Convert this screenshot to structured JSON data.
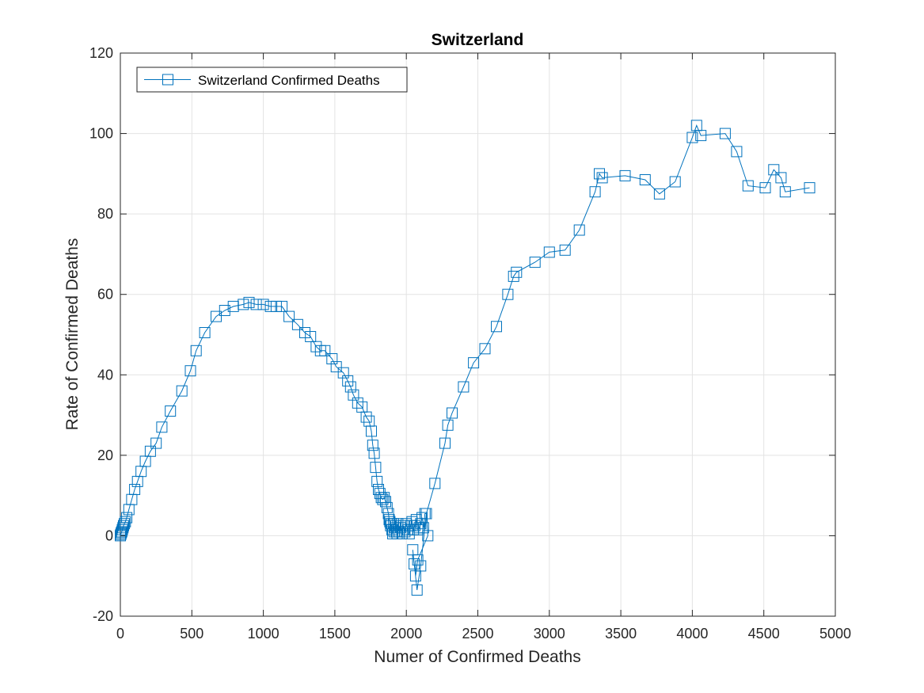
{
  "chart_data": {
    "type": "line",
    "title": "Switzerland",
    "xlabel": "Numer of Confirmed Deaths",
    "ylabel": "Rate of Confirmed Deaths",
    "xlim": [
      0,
      5000
    ],
    "ylim": [
      -20,
      120
    ],
    "xticks": [
      0,
      500,
      1000,
      1500,
      2000,
      2500,
      3000,
      3500,
      4000,
      4500,
      5000
    ],
    "yticks": [
      -20,
      0,
      20,
      40,
      60,
      80,
      100,
      120
    ],
    "grid": true,
    "legend_position": "top-left",
    "series": [
      {
        "name": "Switzerland Confirmed Deaths",
        "color": "#0072BD",
        "marker": "square",
        "x": [
          0,
          3,
          6,
          10,
          14,
          18,
          22,
          28,
          35,
          45,
          60,
          80,
          100,
          120,
          145,
          175,
          210,
          250,
          290,
          350,
          430,
          490,
          530,
          590,
          670,
          730,
          790,
          860,
          900,
          950,
          1000,
          1050,
          1090,
          1130,
          1180,
          1240,
          1290,
          1330,
          1370,
          1400,
          1430,
          1480,
          1510,
          1560,
          1590,
          1610,
          1630,
          1660,
          1690,
          1720,
          1740,
          1755,
          1765,
          1775,
          1785,
          1795,
          1805,
          1815,
          1825,
          1835,
          1845,
          1855,
          1865,
          1875,
          1880,
          1885,
          1890,
          1895,
          1900,
          1905,
          1910,
          1915,
          1920,
          1925,
          1930,
          1935,
          1940,
          1950,
          1960,
          1970,
          1980,
          1990,
          2000,
          2010,
          2020,
          2030,
          2040,
          2050,
          2060,
          2070,
          2080,
          2090,
          2100,
          2110,
          2120,
          2130,
          2140,
          2150,
          2080,
          2065,
          2055,
          2045,
          2075,
          2100,
          2140,
          2200,
          2270,
          2290,
          2320,
          2400,
          2470,
          2550,
          2630,
          2710,
          2750,
          2770,
          2900,
          3000,
          3110,
          3210,
          3320,
          3350,
          3370,
          3530,
          3670,
          3770,
          3880,
          4000,
          4030,
          4060,
          4230,
          4310,
          4390,
          4510,
          4570,
          4620,
          4650,
          4820
        ],
        "y": [
          0,
          0.3,
          0.7,
          1,
          1.5,
          2,
          2.5,
          3,
          3.5,
          4.5,
          6.5,
          9,
          11.5,
          13.5,
          16,
          18.5,
          21,
          23,
          27,
          31,
          36,
          41,
          46,
          50.5,
          54.5,
          56,
          57,
          57.5,
          58,
          57.5,
          57.5,
          57,
          57,
          57,
          54.5,
          52.5,
          50.5,
          49.5,
          47,
          46,
          46,
          44,
          42,
          40.5,
          38.5,
          37,
          35,
          33,
          32,
          29.5,
          28.5,
          26,
          22.5,
          20.5,
          17,
          13.5,
          11.5,
          10.5,
          9.5,
          9,
          9.5,
          8.5,
          7,
          5.5,
          4,
          3.5,
          2.5,
          3,
          1.5,
          0.5,
          3,
          1,
          2,
          2.5,
          1,
          0.5,
          3,
          1,
          2,
          0.5,
          2.5,
          1,
          3,
          1.5,
          0.5,
          2.5,
          3.5,
          1.5,
          2.5,
          4,
          1.5,
          2,
          3,
          4.5,
          2,
          5.5,
          5.5,
          0,
          -6,
          -10,
          -7,
          -3.5,
          -13.5,
          -7.5,
          5.5,
          13,
          23,
          27.5,
          30.5,
          37,
          43,
          46.5,
          52,
          60,
          64.5,
          65.5,
          68,
          70.5,
          71,
          76,
          85.5,
          90,
          89,
          89.5,
          88.5,
          85,
          88,
          99,
          102,
          99.5,
          100,
          95.5,
          87,
          86.5,
          91,
          89,
          85.5,
          86.5
        ]
      }
    ]
  }
}
